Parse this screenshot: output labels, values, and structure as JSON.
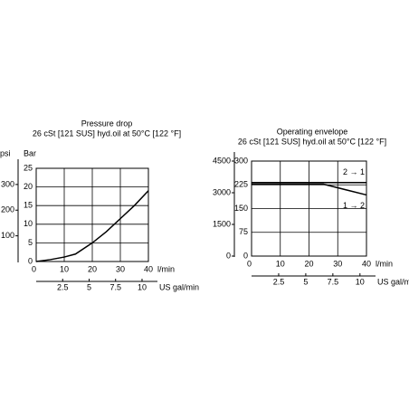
{
  "chart_data": [
    {
      "type": "line",
      "title": "Pressure drop",
      "subtitle": "26 cSt [121 SUS] hyd.oil at 50°C [122 °F]",
      "x_label": "l/min",
      "y_label": "Bar",
      "y2_label": "psi",
      "x2_label": "US gal/min",
      "x": [
        0,
        5,
        10,
        14,
        20,
        25,
        30,
        35,
        40
      ],
      "values": [
        0,
        0.5,
        1.2,
        2,
        5,
        8,
        11.5,
        15,
        19
      ],
      "color": "#000000",
      "xlim": [
        0,
        40
      ],
      "xticks": [
        0,
        10,
        20,
        30,
        40
      ],
      "ylim": [
        0,
        25
      ],
      "yticks": [
        0,
        5,
        10,
        15,
        20,
        25
      ],
      "y2lim": [
        0,
        363
      ],
      "y2ticks": [
        100,
        200,
        300
      ],
      "x2lim": [
        0,
        10.6
      ],
      "x2ticks": [
        2.5,
        5,
        7.5,
        10
      ],
      "grid": true
    },
    {
      "type": "line",
      "title": "Operating envelope",
      "subtitle": "26 cSt [121 SUS] hyd.oil at 50°C [122 °F]",
      "x_label": "l/min",
      "x2_label": "US gal/min",
      "series": [
        {
          "name": "2 → 1",
          "color": "#000000",
          "x": [
            0,
            40
          ],
          "values": [
            232,
            232
          ]
        },
        {
          "name": "1 → 2",
          "color": "#000000",
          "x": [
            0,
            25,
            40
          ],
          "values": [
            227,
            227,
            193
          ]
        }
      ],
      "xlim": [
        0,
        40
      ],
      "xticks": [
        0,
        10,
        20,
        30,
        40
      ],
      "ylim": [
        0,
        300
      ],
      "yticks": [
        0,
        75,
        150,
        225,
        300
      ],
      "y2lim": [
        0,
        4500
      ],
      "y2ticks": [
        0,
        1500,
        3000,
        4500
      ],
      "x2lim": [
        0,
        10.6
      ],
      "x2ticks": [
        2.5,
        5,
        7.5,
        10
      ],
      "grid": true
    }
  ]
}
